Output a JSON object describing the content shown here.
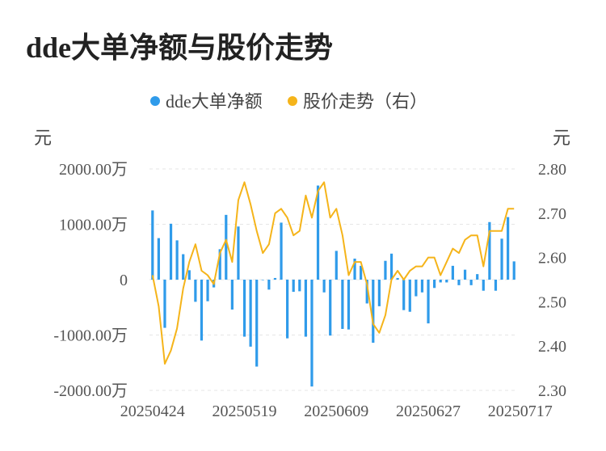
{
  "title": "dde大单净额与股价走势",
  "chart_data": {
    "type": "bar+line",
    "title": "dde大单净额与股价走势",
    "legend": [
      {
        "name": "dde大单净额",
        "color": "#2f9bea"
      },
      {
        "name": "股价走势（右）",
        "color": "#f5b41a"
      }
    ],
    "legend_position": "top-center",
    "y_left_unit": "元",
    "y_right_unit": "元",
    "y_left_range": [
      -2000,
      2000
    ],
    "y_left_ticks": [
      "2000.00万",
      "1000.00万",
      "0",
      "-1000.00万",
      "-2000.00万"
    ],
    "y_right_range": [
      2.3,
      2.8
    ],
    "y_right_ticks": [
      "2.80",
      "2.70",
      "2.60",
      "2.50",
      "2.40",
      "2.30"
    ],
    "x_tick_labels": [
      "20250424",
      "20250519",
      "20250609",
      "20250627",
      "20250717"
    ],
    "x_tick_indices": [
      0,
      15,
      30,
      45,
      60
    ],
    "grid": true,
    "series": [
      {
        "name": "dde大单净额",
        "type": "bar",
        "unit": "万",
        "values": [
          1250,
          750,
          -870,
          1010,
          710,
          460,
          170,
          -400,
          -1100,
          -390,
          -140,
          550,
          1170,
          -540,
          960,
          -1030,
          -1210,
          -1570,
          0,
          -180,
          30,
          1030,
          -1060,
          -220,
          -210,
          -1030,
          -1930,
          1700,
          -230,
          -1010,
          520,
          -890,
          -900,
          380,
          250,
          -430,
          -1140,
          -480,
          340,
          470,
          30,
          -550,
          -580,
          -300,
          -230,
          -790,
          -150,
          -50,
          -50,
          250,
          -100,
          180,
          -100,
          100,
          -200,
          1040,
          -200,
          740,
          1130,
          330
        ]
      },
      {
        "name": "股价走势（右）",
        "type": "line",
        "values": [
          2.56,
          2.49,
          2.36,
          2.39,
          2.44,
          2.53,
          2.59,
          2.63,
          2.57,
          2.56,
          2.54,
          2.61,
          2.64,
          2.59,
          2.73,
          2.77,
          2.72,
          2.66,
          2.61,
          2.63,
          2.7,
          2.71,
          2.69,
          2.65,
          2.66,
          2.74,
          2.69,
          2.75,
          2.77,
          2.69,
          2.71,
          2.65,
          2.56,
          2.59,
          2.59,
          2.54,
          2.45,
          2.43,
          2.47,
          2.55,
          2.57,
          2.55,
          2.57,
          2.58,
          2.58,
          2.6,
          2.6,
          2.56,
          2.59,
          2.62,
          2.61,
          2.64,
          2.65,
          2.65,
          2.58,
          2.66,
          2.66,
          2.66,
          2.71,
          2.71
        ]
      }
    ]
  }
}
